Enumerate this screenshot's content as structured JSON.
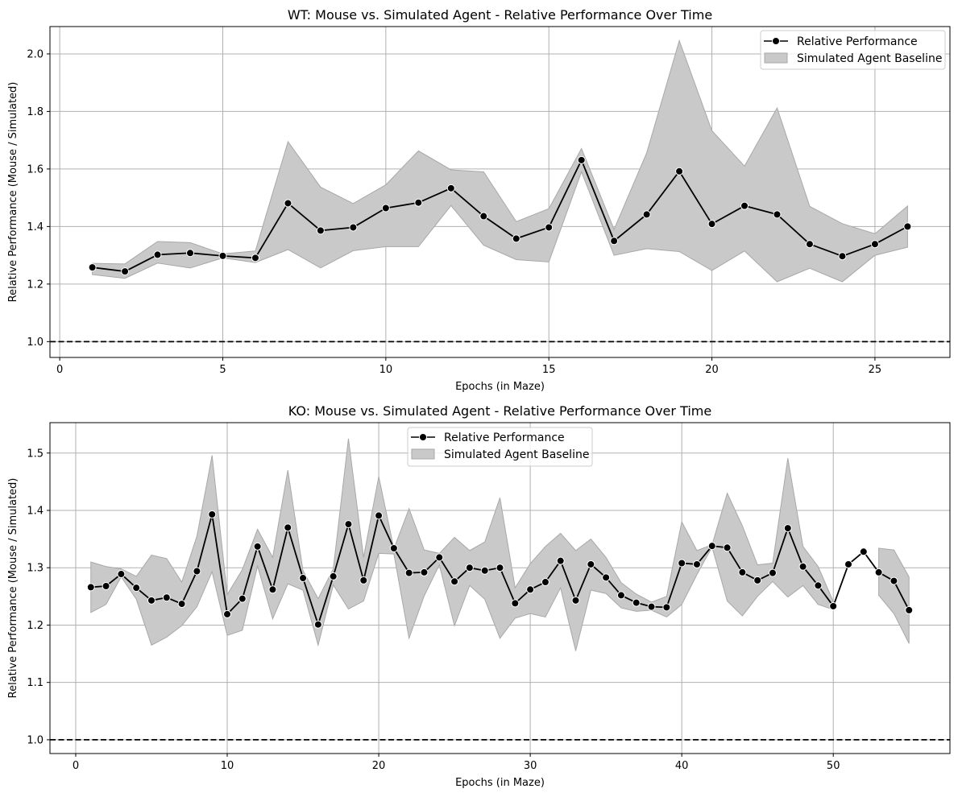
{
  "chart_data": [
    {
      "type": "line",
      "title": "WT: Mouse vs. Simulated Agent - Relative Performance Over Time",
      "xlabel": "Epochs (in Maze)",
      "ylabel": "Relative Performance (Mouse / Simulated)",
      "xlim": [
        -0.3,
        27.3
      ],
      "ylim": [
        0.945,
        2.095
      ],
      "xticks": [
        0,
        5,
        10,
        15,
        20,
        25
      ],
      "yticks": [
        1.0,
        1.2,
        1.4,
        1.6,
        1.8,
        2.0
      ],
      "ytick_decimals": 1,
      "grid": true,
      "legend_position": "top-right",
      "reference_line": 1.0,
      "series": [
        {
          "name": "Relative Performance",
          "x": [
            1,
            2,
            3,
            4,
            5,
            6,
            7,
            8,
            9,
            10,
            11,
            12,
            13,
            14,
            15,
            16,
            17,
            18,
            19,
            20,
            21,
            22,
            23,
            24,
            25,
            26
          ],
          "values": [
            1.258,
            1.244,
            1.302,
            1.308,
            1.298,
            1.291,
            1.481,
            1.386,
            1.397,
            1.464,
            1.483,
            1.533,
            1.436,
            1.358,
            1.397,
            1.631,
            1.35,
            1.442,
            1.592,
            1.409,
            1.472,
            1.442,
            1.339,
            1.297,
            1.339,
            1.4
          ],
          "color": "#000000"
        }
      ],
      "band": {
        "name": "Simulated Agent Baseline",
        "color": "#c9c9c9",
        "edge": "#a8a8a8",
        "upper": [
          1.272,
          1.27,
          1.348,
          1.344,
          1.305,
          1.315,
          1.695,
          1.537,
          1.48,
          1.545,
          1.663,
          1.597,
          1.59,
          1.417,
          1.462,
          1.671,
          1.39,
          1.656,
          2.046,
          1.733,
          1.61,
          1.812,
          1.47,
          1.41,
          1.375,
          1.471
        ],
        "lower": [
          1.233,
          1.22,
          1.273,
          1.256,
          1.291,
          1.275,
          1.32,
          1.256,
          1.316,
          1.33,
          1.33,
          1.473,
          1.335,
          1.285,
          1.277,
          1.59,
          1.3,
          1.323,
          1.313,
          1.247,
          1.315,
          1.208,
          1.255,
          1.208,
          1.3,
          1.328
        ]
      }
    },
    {
      "type": "line",
      "title": "KO: Mouse vs. Simulated Agent - Relative Performance Over Time",
      "xlabel": "Epochs (in Maze)",
      "ylabel": "Relative Performance (Mouse / Simulated)",
      "xlim": [
        -1.7,
        57.7
      ],
      "ylim": [
        0.976,
        1.553
      ],
      "xticks": [
        0,
        10,
        20,
        30,
        40,
        50
      ],
      "yticks": [
        1.0,
        1.1,
        1.2,
        1.3,
        1.4,
        1.5
      ],
      "ytick_decimals": 1,
      "grid": true,
      "legend_position": "top-center",
      "reference_line": 1.0,
      "series": [
        {
          "name": "Relative Performance",
          "x": [
            1,
            2,
            3,
            4,
            5,
            6,
            7,
            8,
            9,
            10,
            11,
            12,
            13,
            14,
            15,
            16,
            17,
            18,
            19,
            20,
            21,
            22,
            23,
            24,
            25,
            26,
            27,
            28,
            29,
            30,
            31,
            32,
            33,
            34,
            35,
            36,
            37,
            38,
            39,
            40,
            41,
            42,
            43,
            44,
            45,
            46,
            47,
            48,
            49,
            50,
            51,
            52,
            53,
            54,
            55
          ],
          "values": [
            1.266,
            1.268,
            1.289,
            1.265,
            1.243,
            1.248,
            1.237,
            1.294,
            1.393,
            1.219,
            1.246,
            1.337,
            1.262,
            1.37,
            1.282,
            1.201,
            1.285,
            1.376,
            1.278,
            1.391,
            1.334,
            1.291,
            1.292,
            1.318,
            1.276,
            1.3,
            1.295,
            1.3,
            1.238,
            1.262,
            1.275,
            1.312,
            1.243,
            1.306,
            1.283,
            1.252,
            1.239,
            1.232,
            1.231,
            1.308,
            1.306,
            1.338,
            1.335,
            1.292,
            1.278,
            1.291,
            1.369,
            1.302,
            1.269,
            1.233,
            1.306,
            1.328,
            1.292,
            1.277,
            1.226
          ],
          "color": "#000000"
        }
      ],
      "band": {
        "name": "Simulated Agent Baseline",
        "color": "#c9c9c9",
        "edge": "#a8a8a8",
        "upper": [
          1.31,
          1.302,
          1.298,
          1.285,
          1.322,
          1.316,
          1.275,
          1.355,
          1.496,
          1.253,
          1.297,
          1.367,
          1.318,
          1.47,
          1.295,
          1.246,
          1.298,
          1.525,
          1.318,
          1.459,
          1.333,
          1.403,
          1.331,
          1.325,
          1.353,
          1.33,
          1.345,
          1.422,
          1.265,
          1.307,
          1.337,
          1.36,
          1.33,
          1.35,
          1.318,
          1.274,
          1.254,
          1.24,
          1.25,
          1.38,
          1.33,
          1.34,
          1.43,
          1.373,
          1.305,
          1.308,
          1.491,
          1.337,
          1.302,
          1.241,
          null,
          null,
          1.334,
          1.331,
          1.284
        ],
        "lower": [
          1.222,
          1.236,
          1.284,
          1.245,
          1.165,
          1.179,
          1.199,
          1.232,
          1.293,
          1.182,
          1.191,
          1.303,
          1.211,
          1.272,
          1.261,
          1.165,
          1.27,
          1.228,
          1.242,
          1.325,
          1.324,
          1.177,
          1.251,
          1.305,
          1.199,
          1.269,
          1.245,
          1.177,
          1.212,
          1.22,
          1.214,
          1.265,
          1.155,
          1.261,
          1.255,
          1.23,
          1.224,
          1.226,
          1.214,
          1.236,
          1.288,
          1.336,
          1.242,
          1.216,
          1.25,
          1.276,
          1.249,
          1.269,
          1.236,
          1.227,
          null,
          null,
          1.252,
          1.22,
          1.168
        ]
      }
    }
  ]
}
